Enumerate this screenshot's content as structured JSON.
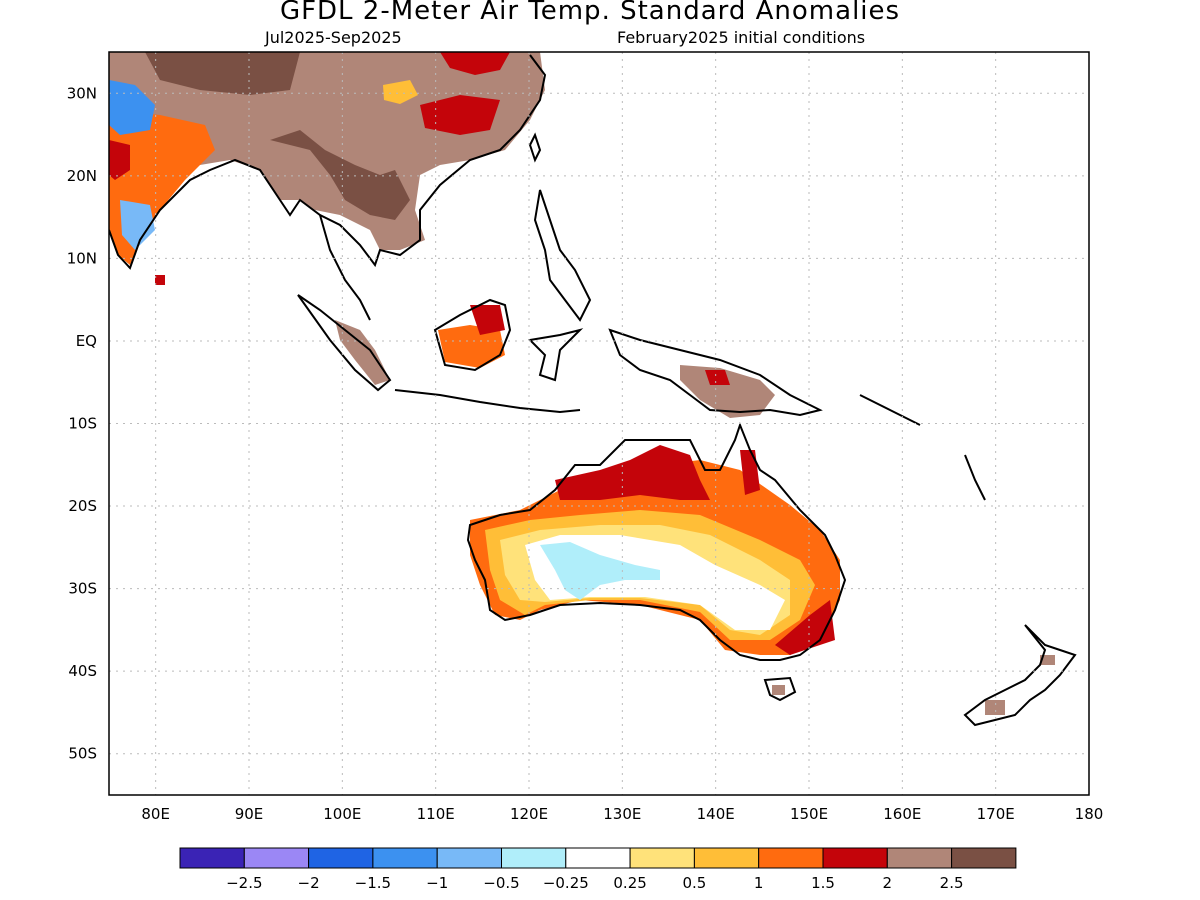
{
  "title": "GFDL 2-Meter Air Temp. Standard Anomalies",
  "subtitle_left": "Jul2025-Sep2025",
  "subtitle_right": "February2025 initial conditions",
  "map": {
    "lon_range": [
      75,
      180
    ],
    "lat_range": [
      -55,
      35
    ],
    "lon_labels": [
      "80E",
      "90E",
      "100E",
      "110E",
      "120E",
      "130E",
      "140E",
      "150E",
      "160E",
      "170E",
      "180"
    ],
    "lat_labels": [
      "30N",
      "20N",
      "10N",
      "EQ",
      "10S",
      "20S",
      "30S",
      "40S",
      "50S"
    ],
    "grid": true
  },
  "legend": {
    "colors": [
      "#3a23b5",
      "#9b87f5",
      "#1f64e4",
      "#3c91f0",
      "#78b9f7",
      "#b0eefa",
      "#ffffff",
      "#ffe27a",
      "#ffbe37",
      "#ff6b0f",
      "#c4040a",
      "#b08678",
      "#7a5044"
    ],
    "labels": [
      "-2.5",
      "-2",
      "-1.5",
      "-1",
      "-0.5",
      "-0.25",
      "0.25",
      "0.5",
      "1",
      "1.5",
      "2",
      "2.5"
    ]
  }
}
